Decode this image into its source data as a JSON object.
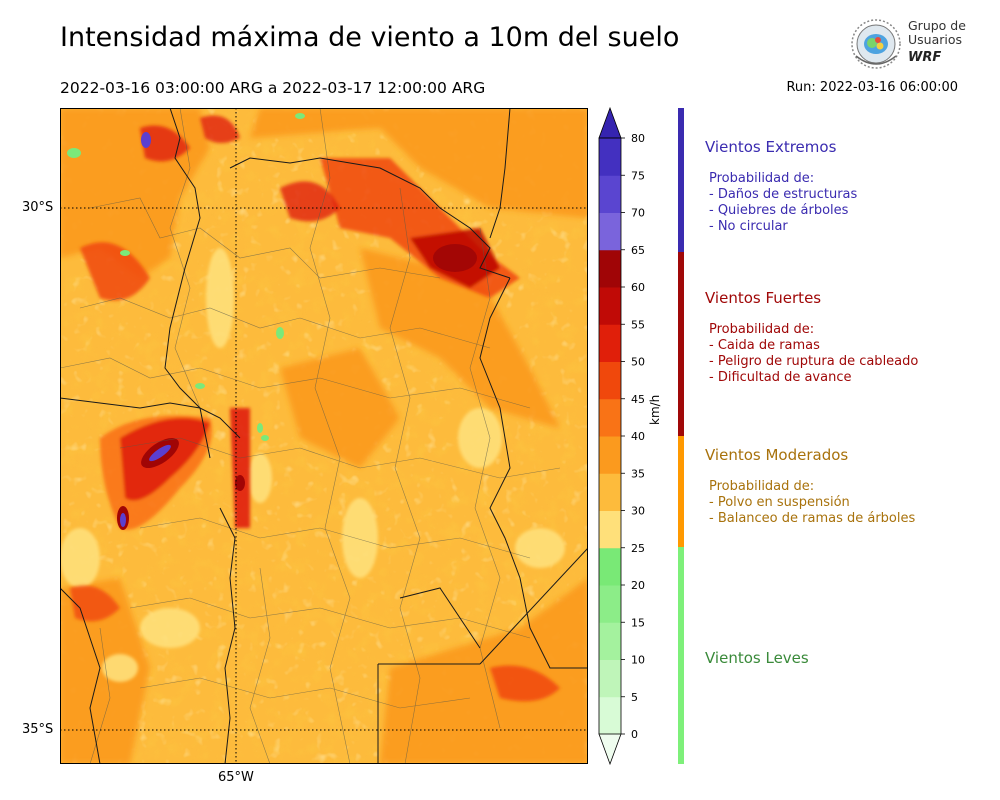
{
  "header": {
    "title": "Intensidad máxima de viento a 10m del suelo",
    "period": "2022-03-16 03:00:00 ARG  a  2022-03-17 12:00:00 ARG",
    "run": "Run: 2022-03-16 06:00:00"
  },
  "logo": {
    "line1": "Grupo de",
    "line2": "Usuarios",
    "line3": "WRF",
    "icon": "globe-logo-icon"
  },
  "map": {
    "lat_labels": [
      "30°S",
      "35°S"
    ],
    "lon_labels": [
      "65°W"
    ],
    "colors": {
      "light": "#fbd38b",
      "yellow": "#ffe07a",
      "orange_light": "#fdbb3c",
      "orange": "#fb9a1e",
      "orange_dark": "#f97316",
      "red_orange": "#f0480c",
      "red": "#d41708",
      "dark_red": "#b40a06",
      "maroon": "#8c0505",
      "purple": "#5b3fd0",
      "green": "#7be97a",
      "border": "#1a1a1a",
      "subdivision": "#5a5a4a"
    }
  },
  "colorbar": {
    "unit": "km/h",
    "tick_labels": [
      "0",
      "5",
      "10",
      "15",
      "20",
      "25",
      "30",
      "35",
      "40",
      "45",
      "50",
      "55",
      "60",
      "65",
      "70",
      "75",
      "80"
    ],
    "colors": [
      "#effdef",
      "#d8fbd6",
      "#bff5b9",
      "#a4f29e",
      "#8ced88",
      "#79e976",
      "#ffe07a",
      "#fdbb3c",
      "#fb9a1e",
      "#f97316",
      "#f0480c",
      "#e01f0a",
      "#c00a06",
      "#a00506",
      "#7a64dc",
      "#5a45d0",
      "#4330c0",
      "#3524b0"
    ]
  },
  "categories": [
    {
      "title": "Vientos Extremos",
      "color": "#3a2bb0",
      "lines": [
        "Probabilidad de:",
        "- Daños de estructuras",
        "- Quiebres de árboles",
        "- No circular"
      ]
    },
    {
      "title": "Vientos Fuertes",
      "color": "#a00808",
      "lines": [
        "Probabilidad de:",
        "- Caida de ramas",
        "- Peligro de ruptura de cableado",
        "- Dificultad de avance"
      ]
    },
    {
      "title": "Vientos Moderados",
      "color": "#a8720c",
      "lines": [
        "Probabilidad de:",
        "- Polvo en suspensión",
        "- Balanceo de ramas de árboles"
      ]
    },
    {
      "title": "Vientos Leves",
      "color": "#3a8a3a",
      "lines": []
    }
  ],
  "category_bar_colors": [
    "#3a2bb0",
    "#a00808",
    "#ff9900",
    "#7ef07a"
  ]
}
